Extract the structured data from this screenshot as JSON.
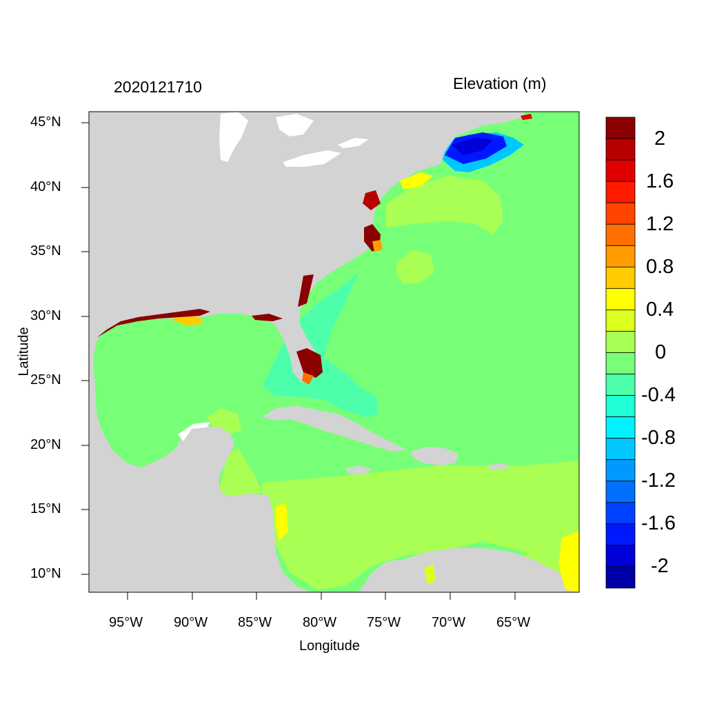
{
  "header": {
    "timestamp": "2020121710",
    "variable": "Elevation (m)"
  },
  "axes": {
    "xlabel": "Longitude",
    "ylabel": "Latitude",
    "xticks": [
      "95°W",
      "90°W",
      "85°W",
      "80°W",
      "75°W",
      "70°W",
      "65°W"
    ],
    "yticks": [
      "45°N",
      "40°N",
      "35°N",
      "30°N",
      "25°N",
      "20°N",
      "15°N",
      "10°N"
    ],
    "lon_range": [
      -98,
      -60.5
    ],
    "lat_range": [
      8.5,
      46
    ]
  },
  "colorbar": {
    "labels": [
      "2",
      "1.6",
      "1.2",
      "0.8",
      "0.4",
      "0",
      "-0.4",
      "-0.8",
      "-1.2",
      "-1.6",
      "-2"
    ],
    "colors": [
      "#8b0000",
      "#b80000",
      "#e00000",
      "#ff1a00",
      "#ff4500",
      "#ff7000",
      "#ff9c00",
      "#ffcc00",
      "#ffff00",
      "#dcff1e",
      "#aaff55",
      "#78ff78",
      "#4dffaa",
      "#1effd6",
      "#00f2ff",
      "#00c8ff",
      "#009aff",
      "#0070ff",
      "#0042ff",
      "#0018ff",
      "#0000d8",
      "#0000a8"
    ]
  },
  "map": {
    "land_color": "#d3d3d3",
    "ocean_base_color": "#78ff78"
  }
}
